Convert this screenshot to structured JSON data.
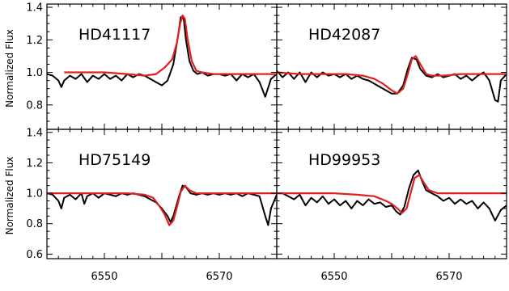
{
  "chart_data": [
    {
      "type": "line",
      "panel": "top-left",
      "title": "HD41117",
      "xlabel": "",
      "ylabel": "Normalized Flux",
      "xlim": [
        6540,
        6580
      ],
      "ylim": [
        0.65,
        1.42
      ],
      "xticks": [
        6550,
        6570
      ],
      "yticks": [
        0.8,
        1.0,
        1.2,
        1.4
      ],
      "series": [
        {
          "name": "",
          "color": "#000000",
          "kind": "observed",
          "x": [
            6540,
            6541,
            6542,
            6542.5,
            6543,
            6544,
            6545,
            6546,
            6547,
            6548,
            6549,
            6550,
            6551,
            6552,
            6553,
            6554,
            6555,
            6556,
            6557,
            6558,
            6559,
            6560,
            6561,
            6562,
            6562.8,
            6563.3,
            6563.8,
            6564.2,
            6564.8,
            6565.5,
            6566.2,
            6567,
            6568,
            6569,
            6570,
            6571,
            6572,
            6573,
            6574,
            6575,
            6576,
            6577,
            6578,
            6579,
            6580
          ],
          "y": [
            0.99,
            0.98,
            0.95,
            0.91,
            0.95,
            0.98,
            0.96,
            0.99,
            0.94,
            0.98,
            0.96,
            0.99,
            0.96,
            0.98,
            0.95,
            0.99,
            0.97,
            0.99,
            0.98,
            0.96,
            0.94,
            0.92,
            0.95,
            1.05,
            1.22,
            1.34,
            1.33,
            1.2,
            1.07,
            1.01,
            0.99,
            1.0,
            0.98,
            0.99,
            0.99,
            0.98,
            0.99,
            0.95,
            0.99,
            0.97,
            0.99,
            0.94,
            0.85,
            0.96,
            0.99
          ]
        },
        {
          "name": "",
          "color": "#e0201c",
          "kind": "model",
          "x": [
            6543,
            6546,
            6550,
            6554,
            6557,
            6559,
            6560.5,
            6561.8,
            6562.6,
            6563.2,
            6563.6,
            6564,
            6564.5,
            6565.2,
            6566,
            6567,
            6569,
            6571,
            6575,
            6580
          ],
          "y": [
            1.0,
            1.0,
            1.0,
            0.99,
            0.98,
            0.99,
            1.03,
            1.08,
            1.18,
            1.3,
            1.35,
            1.33,
            1.2,
            1.07,
            1.01,
            1.0,
            0.99,
            0.99,
            0.99,
            0.99
          ]
        }
      ]
    },
    {
      "type": "line",
      "panel": "top-right",
      "title": "HD42087",
      "xlabel": "",
      "ylabel": "",
      "xlim": [
        6540,
        6580
      ],
      "ylim": [
        0.65,
        1.42
      ],
      "xticks": [
        6550,
        6570
      ],
      "yticks": [
        0.8,
        1.0,
        1.2,
        1.4
      ],
      "series": [
        {
          "name": "",
          "color": "#000000",
          "kind": "observed",
          "x": [
            6540,
            6541,
            6542,
            6543,
            6544,
            6545,
            6546,
            6547,
            6548,
            6549,
            6550,
            6551,
            6552,
            6553,
            6554,
            6555,
            6556,
            6557,
            6558,
            6559,
            6560,
            6561,
            6562,
            6562.8,
            6563.5,
            6564.3,
            6565,
            6566,
            6567,
            6568,
            6569,
            6570,
            6571,
            6572,
            6573,
            6574,
            6575,
            6576,
            6577,
            6578,
            6578.5,
            6579,
            6580
          ],
          "y": [
            1.01,
            0.97,
            1.0,
            0.96,
            1.0,
            0.94,
            1.0,
            0.97,
            1.0,
            0.98,
            0.99,
            0.97,
            0.99,
            0.96,
            0.98,
            0.96,
            0.95,
            0.93,
            0.91,
            0.89,
            0.87,
            0.87,
            0.92,
            1.02,
            1.09,
            1.08,
            1.02,
            0.98,
            0.97,
            0.99,
            0.97,
            0.98,
            0.99,
            0.96,
            0.98,
            0.95,
            0.98,
            1.0,
            0.95,
            0.83,
            0.82,
            0.95,
            0.99
          ]
        },
        {
          "name": "",
          "color": "#e0201c",
          "kind": "model",
          "x": [
            6540,
            6544,
            6548,
            6552,
            6555,
            6557,
            6558.5,
            6560,
            6561,
            6562,
            6562.8,
            6563.5,
            6564.2,
            6565,
            6566,
            6567,
            6569,
            6572,
            6576,
            6580
          ],
          "y": [
            1.0,
            0.99,
            0.99,
            0.99,
            0.98,
            0.96,
            0.93,
            0.89,
            0.87,
            0.9,
            0.99,
            1.08,
            1.1,
            1.05,
            0.99,
            0.98,
            0.98,
            0.99,
            0.99,
            0.99
          ]
        }
      ]
    },
    {
      "type": "line",
      "panel": "bottom-left",
      "title": "HD75149",
      "xlabel": "",
      "ylabel": "Normalized Flux",
      "xlim": [
        6540,
        6580
      ],
      "ylim": [
        0.57,
        1.42
      ],
      "xticks": [
        6550,
        6570
      ],
      "yticks": [
        0.6,
        0.8,
        1.0,
        1.2,
        1.4
      ],
      "series": [
        {
          "name": "",
          "color": "#000000",
          "kind": "observed",
          "x": [
            6540,
            6541,
            6542,
            6542.5,
            6543,
            6544,
            6545,
            6546,
            6546.5,
            6547,
            6548,
            6549,
            6550,
            6551,
            6552,
            6553,
            6554,
            6555,
            6556,
            6557,
            6558,
            6559,
            6560,
            6561,
            6561.5,
            6562,
            6563,
            6563.6,
            6564.2,
            6565,
            6566,
            6567,
            6568,
            6569,
            6570,
            6571,
            6572,
            6573,
            6574,
            6575,
            6576,
            6577,
            6578,
            6578.5,
            6579,
            6580
          ],
          "y": [
            1.0,
            0.99,
            0.95,
            0.9,
            0.97,
            0.99,
            0.96,
            1.0,
            0.93,
            0.98,
            1.0,
            0.97,
            1.0,
            0.99,
            0.98,
            1.0,
            0.99,
            1.0,
            0.99,
            0.98,
            0.96,
            0.94,
            0.9,
            0.85,
            0.81,
            0.85,
            0.98,
            1.05,
            1.04,
            1.0,
            0.99,
            1.0,
            0.99,
            1.0,
            0.99,
            1.0,
            0.99,
            1.0,
            0.98,
            1.0,
            0.99,
            0.98,
            0.85,
            0.79,
            0.9,
            0.99
          ]
        },
        {
          "name": "",
          "color": "#e0201c",
          "kind": "model",
          "x": [
            6540,
            6545,
            6550,
            6554,
            6557,
            6558.5,
            6559.5,
            6560.5,
            6561.3,
            6562,
            6562.7,
            6563.3,
            6564,
            6564.8,
            6566,
            6568,
            6572,
            6576,
            6580
          ],
          "y": [
            1.0,
            1.0,
            1.0,
            1.0,
            0.99,
            0.97,
            0.92,
            0.86,
            0.79,
            0.82,
            0.92,
            1.01,
            1.05,
            1.02,
            1.0,
            1.0,
            1.0,
            1.0,
            1.0
          ]
        }
      ]
    },
    {
      "type": "line",
      "panel": "bottom-right",
      "title": "HD99953",
      "xlabel": "",
      "ylabel": "",
      "xlim": [
        6540,
        6580
      ],
      "ylim": [
        0.57,
        1.42
      ],
      "xticks": [
        6550,
        6570
      ],
      "yticks": [
        0.6,
        0.8,
        1.0,
        1.2,
        1.4
      ],
      "series": [
        {
          "name": "",
          "color": "#000000",
          "kind": "observed",
          "x": [
            6540,
            6541,
            6542,
            6543,
            6544,
            6545,
            6546,
            6547,
            6548,
            6549,
            6550,
            6551,
            6552,
            6553,
            6554,
            6555,
            6556,
            6557,
            6558,
            6559,
            6560,
            6560.8,
            6561.5,
            6562.2,
            6563,
            6563.8,
            6564.6,
            6565.3,
            6566,
            6567,
            6568,
            6569,
            6570,
            6571,
            6572,
            6573,
            6574,
            6575,
            6576,
            6577,
            6578,
            6579,
            6580
          ],
          "y": [
            1.0,
            1.0,
            0.98,
            0.96,
            0.99,
            0.92,
            0.97,
            0.94,
            0.98,
            0.93,
            0.96,
            0.92,
            0.95,
            0.9,
            0.95,
            0.92,
            0.96,
            0.93,
            0.94,
            0.91,
            0.92,
            0.88,
            0.86,
            0.91,
            1.03,
            1.12,
            1.15,
            1.08,
            1.02,
            1.0,
            0.98,
            0.95,
            0.97,
            0.93,
            0.96,
            0.93,
            0.95,
            0.9,
            0.94,
            0.9,
            0.82,
            0.89,
            0.92
          ]
        },
        {
          "name": "",
          "color": "#e0201c",
          "kind": "model",
          "x": [
            6540,
            6545,
            6550,
            6554,
            6557,
            6559,
            6560,
            6561,
            6561.8,
            6562.6,
            6563.3,
            6564,
            6564.8,
            6565.6,
            6566.5,
            6568,
            6571,
            6575,
            6580
          ],
          "y": [
            1.0,
            1.0,
            1.0,
            0.99,
            0.98,
            0.95,
            0.93,
            0.9,
            0.87,
            0.9,
            1.0,
            1.1,
            1.12,
            1.07,
            1.02,
            1.0,
            1.0,
            1.0,
            1.0
          ]
        }
      ]
    }
  ],
  "colors": {
    "observed": "#000000",
    "model": "#e0201c",
    "frame": "#000000"
  }
}
